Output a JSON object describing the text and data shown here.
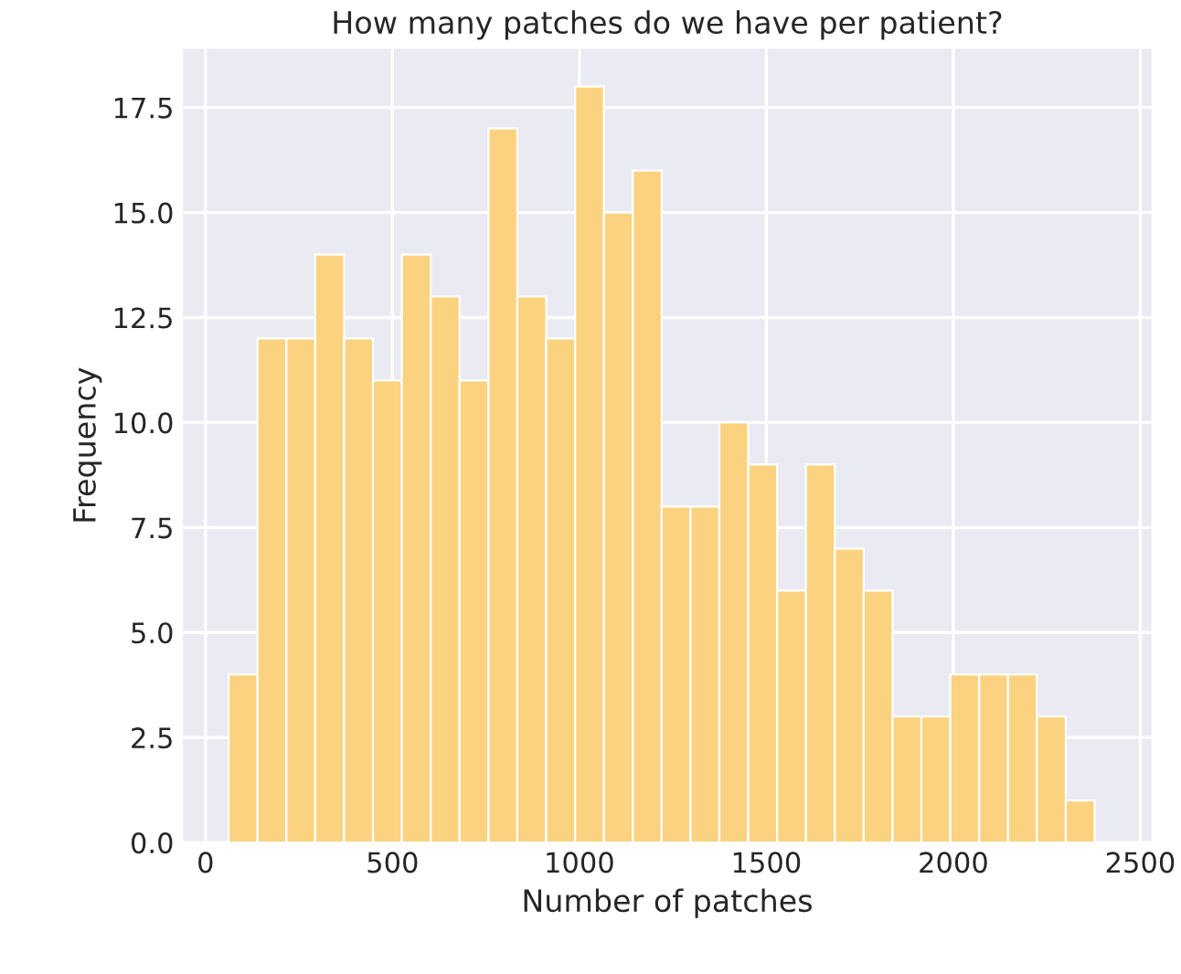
{
  "chart_data": {
    "type": "histogram",
    "title": "How many patches do we have per patient?",
    "xlabel": "Number of patches",
    "ylabel": "Frequency",
    "bins": [
      62,
      139.2,
      216.4,
      293.6,
      370.8,
      448,
      525.2,
      602.4,
      679.6,
      756.8,
      834,
      911.2,
      988.4,
      1065.6,
      1142.8,
      1220,
      1297.2,
      1374.4,
      1451.6,
      1528.8,
      1606,
      1683.2,
      1760.4,
      1837.6,
      1914.8,
      1992,
      2069.2,
      2146.4,
      2223.6,
      2300.8,
      2378
    ],
    "values": [
      4,
      12,
      12,
      14,
      12,
      11,
      14,
      13,
      11,
      17,
      13,
      12,
      18,
      15,
      16,
      8,
      8,
      10,
      9,
      6,
      9,
      7,
      6,
      3,
      3,
      4,
      4,
      4,
      3,
      1
    ],
    "color": "#fbd27f",
    "xlim": [
      -60,
      2530
    ],
    "xticks": [
      0,
      500,
      1000,
      1500,
      2000,
      2500
    ],
    "ylim": [
      0,
      18.9
    ],
    "yticks": [
      {
        "value": 0,
        "label": "0.0"
      },
      {
        "value": 2.5,
        "label": "2.5"
      },
      {
        "value": 5,
        "label": "5.0"
      },
      {
        "value": 7.5,
        "label": "7.5"
      },
      {
        "value": 10,
        "label": "10.0"
      },
      {
        "value": 12.5,
        "label": "12.5"
      },
      {
        "value": 15,
        "label": "15.0"
      },
      {
        "value": 17.5,
        "label": "17.5"
      }
    ],
    "grid": true
  }
}
